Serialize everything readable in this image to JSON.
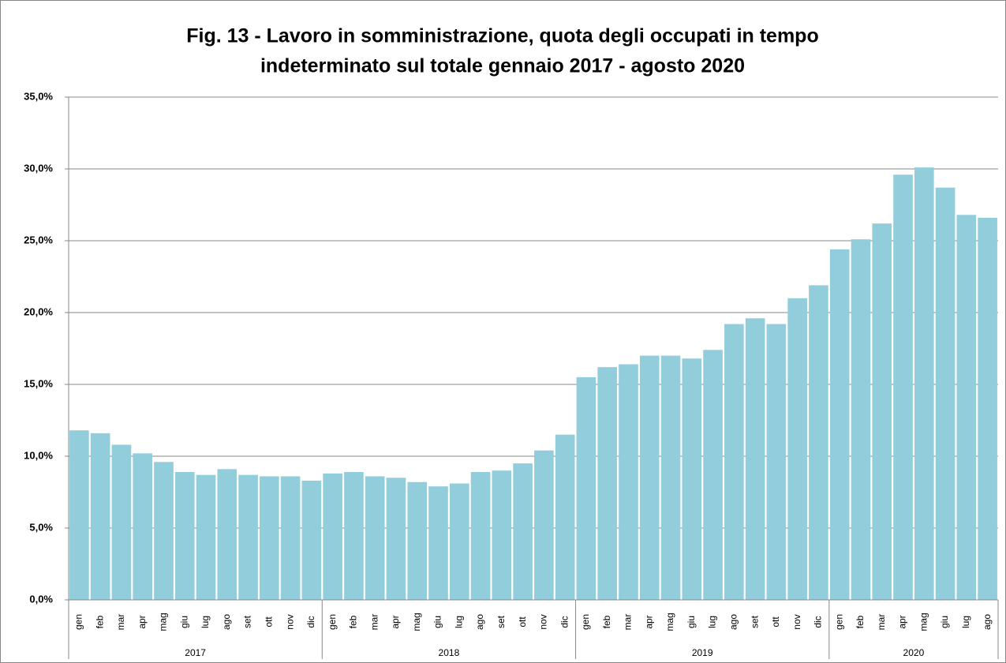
{
  "chart_data": {
    "type": "bar",
    "title": [
      "Fig. 13 - Lavoro in somministrazione, quota degli occupati in tempo",
      "indeterminato sul totale gennaio 2017 - agosto 2020"
    ],
    "groups": [
      {
        "name": "2017",
        "categories": [
          "gen",
          "feb",
          "mar",
          "apr",
          "mag",
          "giu",
          "lug",
          "ago",
          "set",
          "ott",
          "nov",
          "dic"
        ]
      },
      {
        "name": "2018",
        "categories": [
          "gen",
          "feb",
          "mar",
          "apr",
          "mag",
          "giu",
          "lug",
          "ago",
          "set",
          "ott",
          "nov",
          "dic"
        ]
      },
      {
        "name": "2019",
        "categories": [
          "gen",
          "feb",
          "mar",
          "apr",
          "mag",
          "giu",
          "lug",
          "ago",
          "set",
          "ott",
          "nov",
          "dic"
        ]
      },
      {
        "name": "2020",
        "categories": [
          "gen",
          "feb",
          "mar",
          "apr",
          "mag",
          "giu",
          "lug",
          "ago"
        ]
      }
    ],
    "values": [
      11.8,
      11.6,
      10.8,
      10.2,
      9.6,
      8.9,
      8.7,
      9.1,
      8.7,
      8.6,
      8.6,
      8.3,
      8.8,
      8.9,
      8.6,
      8.5,
      8.2,
      7.9,
      8.1,
      8.9,
      9.0,
      9.5,
      10.4,
      11.5,
      15.5,
      16.2,
      16.4,
      17.0,
      17.0,
      16.8,
      17.4,
      19.2,
      19.6,
      19.2,
      21.0,
      21.9,
      24.4,
      25.1,
      26.2,
      29.6,
      30.1,
      28.7,
      26.8,
      26.6
    ],
    "color": "#92cddc",
    "ylim": [
      0,
      35
    ],
    "yticks": [
      {
        "value": 0,
        "label": "0,0%"
      },
      {
        "value": 5,
        "label": "5,0%"
      },
      {
        "value": 10,
        "label": "10,0%"
      },
      {
        "value": 15,
        "label": "15,0%"
      },
      {
        "value": 20,
        "label": "20,0%"
      },
      {
        "value": 25,
        "label": "25,0%"
      },
      {
        "value": 30,
        "label": "30,0%"
      },
      {
        "value": 35,
        "label": "35,0%"
      }
    ],
    "grid": true
  }
}
